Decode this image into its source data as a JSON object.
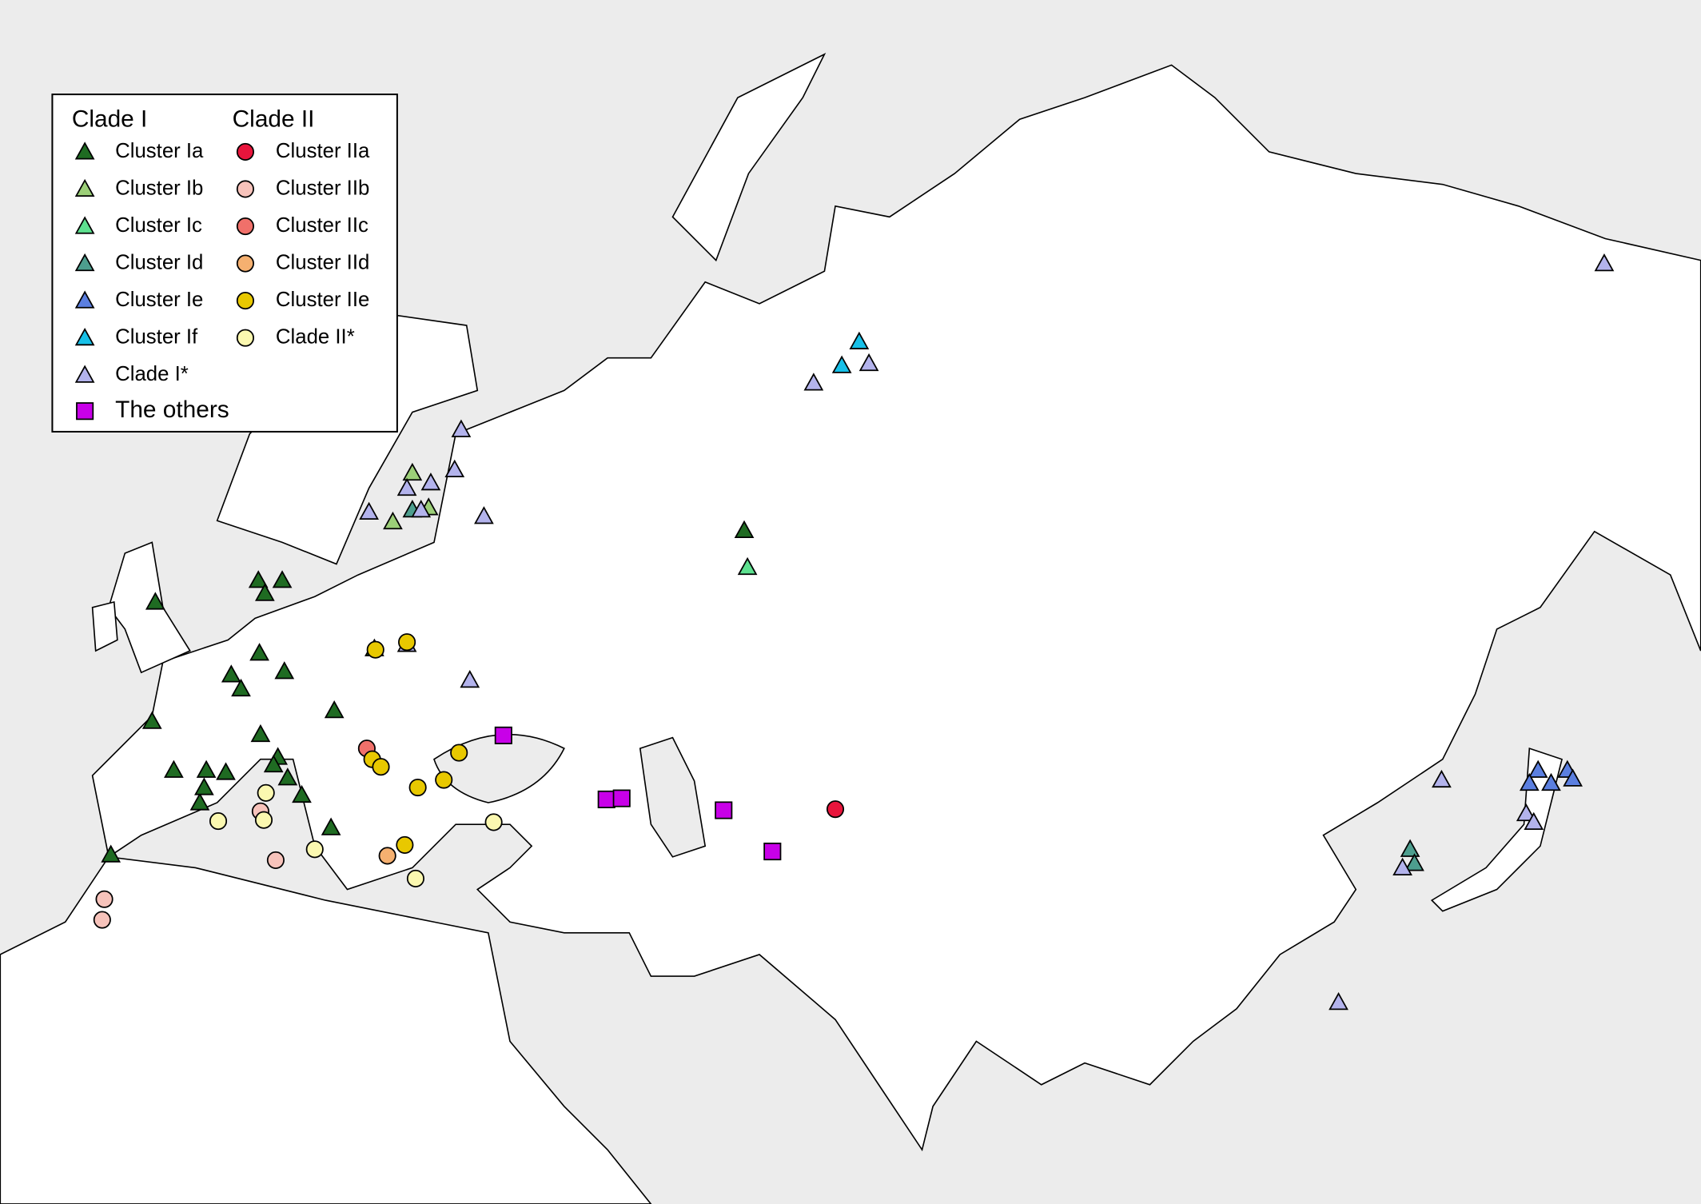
{
  "legend": {
    "clade1": {
      "title": "Clade I",
      "items": [
        {
          "label": "Cluster Ia",
          "color": "#1f6b22"
        },
        {
          "label": "Cluster Ib",
          "color": "#9ccf78"
        },
        {
          "label": "Cluster Ic",
          "color": "#5de08f"
        },
        {
          "label": "Cluster Id",
          "color": "#4d9e8e"
        },
        {
          "label": "Cluster Ie",
          "color": "#5b7fe0"
        },
        {
          "label": "Cluster If",
          "color": "#17c0e8"
        },
        {
          "label": "Clade I*",
          "color": "#b3b3ec"
        }
      ]
    },
    "clade2": {
      "title": "Clade II",
      "items": [
        {
          "label": "Cluster IIa",
          "color": "#e8153c"
        },
        {
          "label": "Cluster IIb",
          "color": "#f7c3bb"
        },
        {
          "label": "Cluster IIc",
          "color": "#f0706a"
        },
        {
          "label": "Cluster IId",
          "color": "#f5b070"
        },
        {
          "label": "Cluster IIe",
          "color": "#e8c800"
        },
        {
          "label": "Clade II*",
          "color": "#fbf8b0"
        }
      ]
    },
    "others": {
      "label": "The others",
      "color": "#c800e8"
    }
  }
}
